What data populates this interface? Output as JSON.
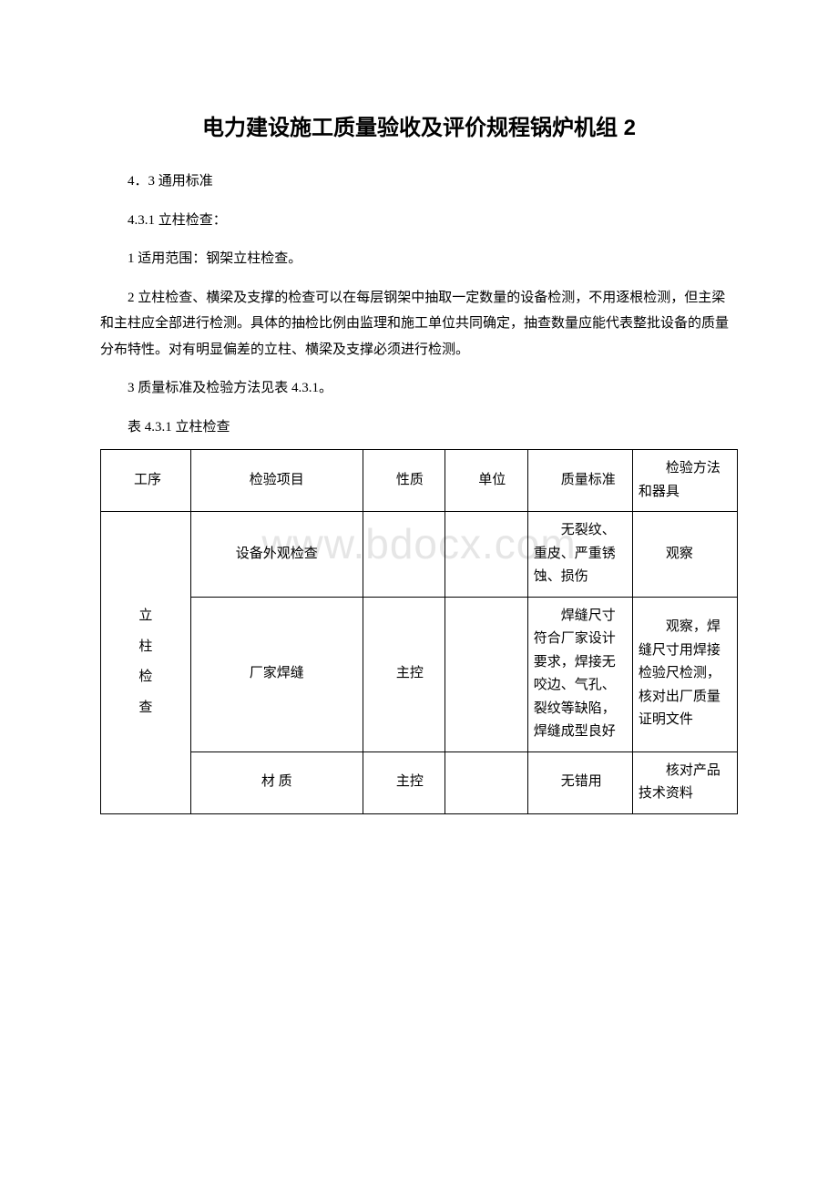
{
  "title": "电力建设施工质量验收及评价规程锅炉机组 2",
  "watermark": "www.bdocx.com",
  "paragraphs": {
    "p1": "4．3 通用标准",
    "p2": "4.3.1 立柱检查：",
    "p3": "1 适用范围：钢架立柱检查。",
    "p4": "2 立柱检查、横梁及支撑的检查可以在每层钢架中抽取一定数量的设备检测，不用逐根检测，但主梁和主柱应全部进行检测。具体的抽检比例由监理和施工单位共同确定，抽查数量应能代表整批设备的质量分布特性。对有明显偏差的立柱、横梁及支撑必须进行检测。",
    "p5": "3 质量标准及检验方法见表 4.3.1。",
    "caption": "表 4.3.1 立柱检查"
  },
  "table": {
    "headers": {
      "seq": "工序",
      "item": "检验项目",
      "nature": "性质",
      "unit": "单位",
      "std": "质量标准",
      "method": "检验方法和器具"
    },
    "rowgroup_label": "立柱检查",
    "rowgroup_chars": [
      "立",
      "柱",
      "检",
      "查"
    ],
    "rows": [
      {
        "item": "设备外观检查",
        "nature": "",
        "unit": "",
        "std": "无裂纹、重皮、严重锈蚀、损伤",
        "method": "观察"
      },
      {
        "item": "厂家焊缝",
        "nature": "主控",
        "unit": "",
        "std": "焊缝尺寸符合厂家设计要求，焊接无咬边、气孔、裂纹等缺陷，焊缝成型良好",
        "method": "观察，焊缝尺寸用焊接检验尺检测，核对出厂质量证明文件"
      },
      {
        "item": "材 质",
        "nature": "主控",
        "unit": "",
        "std": "无错用",
        "method": "核对产品技术资料"
      }
    ]
  }
}
